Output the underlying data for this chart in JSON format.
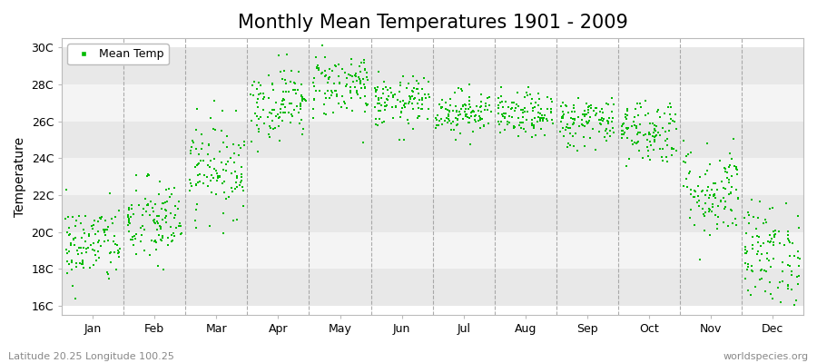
{
  "title": "Monthly Mean Temperatures 1901 - 2009",
  "ylabel": "Temperature",
  "xlabel_labels": [
    "Jan",
    "Feb",
    "Mar",
    "Apr",
    "May",
    "Jun",
    "Jul",
    "Aug",
    "Sep",
    "Oct",
    "Nov",
    "Dec"
  ],
  "ytick_labels": [
    "16C",
    "18C",
    "20C",
    "22C",
    "24C",
    "26C",
    "28C",
    "30C"
  ],
  "ytick_values": [
    16,
    18,
    20,
    22,
    24,
    26,
    28,
    30
  ],
  "ylim": [
    15.5,
    30.5
  ],
  "xlim": [
    0,
    12
  ],
  "dot_color": "#00bb00",
  "dot_size": 3,
  "background_color": "#ffffff",
  "plot_bg_color": "#ffffff",
  "hband_colors": [
    "#e8e8e8",
    "#f4f4f4"
  ],
  "grid_color": "#999999",
  "legend_label": "Mean Temp",
  "footer_left": "Latitude 20.25 Longitude 100.25",
  "footer_right": "worldspecies.org",
  "title_fontsize": 15,
  "axis_fontsize": 10,
  "tick_fontsize": 9,
  "n_years": 109,
  "monthly_means": [
    19.3,
    20.5,
    23.5,
    27.0,
    28.0,
    27.0,
    26.5,
    26.3,
    26.0,
    25.5,
    22.2,
    18.8
  ],
  "monthly_stds": [
    1.1,
    1.2,
    1.3,
    1.0,
    0.9,
    0.7,
    0.6,
    0.6,
    0.7,
    0.9,
    1.3,
    1.4
  ],
  "hband_levels": [
    16,
    18,
    20,
    22,
    24,
    26,
    28,
    30
  ]
}
